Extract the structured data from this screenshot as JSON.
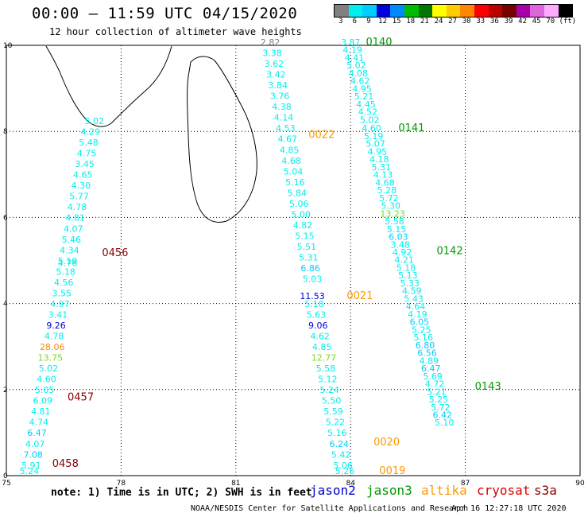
{
  "header": {
    "title": "00:00 — 11:59 UTC 04/15/2020",
    "subtitle": "12 hour collection of altimeter wave heights"
  },
  "colorbar": {
    "colors": [
      "#808080",
      "#00eeee",
      "#00ccff",
      "#0000dd",
      "#0088ff",
      "#00bb00",
      "#007700",
      "#ffff00",
      "#ffcc00",
      "#ff8800",
      "#ff0000",
      "#bb0000",
      "#770000",
      "#aa00aa",
      "#dd66dd",
      "#ffaaff",
      "#000000"
    ],
    "labels": [
      "3",
      "6",
      "9",
      "12",
      "15",
      "18",
      "21",
      "24",
      "27",
      "30",
      "33",
      "36",
      "39",
      "42",
      "45",
      "70",
      "(ft)"
    ]
  },
  "axes": {
    "x_ticks": [
      "75",
      "78",
      "81",
      "84",
      "87",
      "90"
    ],
    "y_ticks": [
      "0",
      "2",
      "4",
      "6",
      "8",
      "10"
    ]
  },
  "legend": {
    "note": "note: 1) Time is in UTC; 2) SWH is in feet",
    "items": [
      {
        "name": "jason2",
        "color": "#0000cc"
      },
      {
        "name": "jason3",
        "color": "#009900"
      },
      {
        "name": "altika",
        "color": "#ff9900"
      },
      {
        "name": "cryosat",
        "color": "#dd0000"
      },
      {
        "name": "s3a",
        "color": "#880000"
      }
    ]
  },
  "footer": {
    "credit": "NOAA/NESDIS Center for Satellite Applications and Research",
    "timestamp": "Apr 16 12:27:18 UTC 2020"
  },
  "chart_data": {
    "type": "scatter",
    "title": "00:00 — 11:59 UTC 04/15/2020",
    "xlim": [
      75,
      90
    ],
    "ylim": [
      0,
      10
    ],
    "grid": true,
    "tracks": [
      {
        "label": "0456",
        "color": "#880000",
        "lx": 77.5,
        "ly": 5.1
      },
      {
        "label": "0457",
        "color": "#880000",
        "lx": 76.6,
        "ly": 1.75
      },
      {
        "label": "0458",
        "color": "#880000",
        "lx": 76.2,
        "ly": 0.2
      },
      {
        "label": "0022",
        "color": "#ff9900",
        "lx": 82.9,
        "ly": 7.85
      },
      {
        "label": "0021",
        "color": "#ff9900",
        "lx": 83.9,
        "ly": 4.1
      },
      {
        "label": "0020",
        "color": "#ff9900",
        "lx": 84.6,
        "ly": 0.7
      },
      {
        "label": "0019",
        "color": "#ff9900",
        "lx": 84.75,
        "ly": 0.0
      },
      {
        "label": "0140",
        "color": "#009900",
        "lx": 84.4,
        "ly": 10.0
      },
      {
        "label": "0141",
        "color": "#009900",
        "lx": 85.25,
        "ly": 8.0
      },
      {
        "label": "0142",
        "color": "#009900",
        "lx": 86.25,
        "ly": 5.15
      },
      {
        "label": "0143",
        "color": "#009900",
        "lx": 87.25,
        "ly": 2.0
      }
    ],
    "points": [
      {
        "x": 77.3,
        "y": 8.17,
        "v": "5.02",
        "c": "#00eeee"
      },
      {
        "x": 77.2,
        "y": 7.92,
        "v": "4.29",
        "c": "#00eeee"
      },
      {
        "x": 77.15,
        "y": 7.67,
        "v": "5.48",
        "c": "#00eeee"
      },
      {
        "x": 77.1,
        "y": 7.42,
        "v": "4.75",
        "c": "#00eeee"
      },
      {
        "x": 77.05,
        "y": 7.17,
        "v": "3.45",
        "c": "#00eeee"
      },
      {
        "x": 77.0,
        "y": 6.92,
        "v": "4.65",
        "c": "#00eeee"
      },
      {
        "x": 76.95,
        "y": 6.67,
        "v": "4.30",
        "c": "#00eeee"
      },
      {
        "x": 76.9,
        "y": 6.42,
        "v": "5.77",
        "c": "#00eeee"
      },
      {
        "x": 76.85,
        "y": 6.17,
        "v": "4.78",
        "c": "#00eeee"
      },
      {
        "x": 76.8,
        "y": 5.92,
        "v": "4.81",
        "c": "#00eeee"
      },
      {
        "x": 76.75,
        "y": 5.67,
        "v": "4.07",
        "c": "#00eeee"
      },
      {
        "x": 76.7,
        "y": 5.42,
        "v": "5.46",
        "c": "#00eeee"
      },
      {
        "x": 76.65,
        "y": 5.17,
        "v": "4.34",
        "c": "#00eeee"
      },
      {
        "x": 76.6,
        "y": 4.92,
        "v": "5.19",
        "c": "#00eeee"
      },
      {
        "x": 76.6,
        "y": 4.87,
        "v": "4.76",
        "c": "#00eeee"
      },
      {
        "x": 76.55,
        "y": 4.67,
        "v": "5.18",
        "c": "#00eeee"
      },
      {
        "x": 76.5,
        "y": 4.42,
        "v": "4.56",
        "c": "#00eeee"
      },
      {
        "x": 76.45,
        "y": 4.17,
        "v": "3.55",
        "c": "#00eeee"
      },
      {
        "x": 76.4,
        "y": 3.92,
        "v": "4.97",
        "c": "#00eeee"
      },
      {
        "x": 76.35,
        "y": 3.67,
        "v": "3.41",
        "c": "#00eeee"
      },
      {
        "x": 76.3,
        "y": 3.42,
        "v": "9.26",
        "c": "#0000dd"
      },
      {
        "x": 76.25,
        "y": 3.17,
        "v": "4.78",
        "c": "#00eeee"
      },
      {
        "x": 76.2,
        "y": 2.92,
        "v": "28.06",
        "c": "#ff8800"
      },
      {
        "x": 76.15,
        "y": 2.67,
        "v": "13.75",
        "c": "#77dd22"
      },
      {
        "x": 76.1,
        "y": 2.42,
        "v": "5.02",
        "c": "#00eeee"
      },
      {
        "x": 76.05,
        "y": 2.17,
        "v": "4.60",
        "c": "#00eeee"
      },
      {
        "x": 76.0,
        "y": 1.92,
        "v": "5.05",
        "c": "#00eeee"
      },
      {
        "x": 75.95,
        "y": 1.67,
        "v": "6.09",
        "c": "#00eeee"
      },
      {
        "x": 75.9,
        "y": 1.42,
        "v": "4.81",
        "c": "#00eeee"
      },
      {
        "x": 75.85,
        "y": 1.17,
        "v": "4.74",
        "c": "#00eeee"
      },
      {
        "x": 75.8,
        "y": 0.92,
        "v": "6.47",
        "c": "#00ccff"
      },
      {
        "x": 75.75,
        "y": 0.67,
        "v": "4.07",
        "c": "#00eeee"
      },
      {
        "x": 75.7,
        "y": 0.42,
        "v": "7.08",
        "c": "#00ccff"
      },
      {
        "x": 75.65,
        "y": 0.17,
        "v": "5.91",
        "c": "#00eeee"
      },
      {
        "x": 75.6,
        "y": -0.08,
        "v": "5.24",
        "c": "#00eeee"
      },
      {
        "x": 81.9,
        "y": 10.0,
        "v": "2.82",
        "c": "#808080"
      },
      {
        "x": 81.95,
        "y": 9.75,
        "v": "3.38",
        "c": "#00eeee"
      },
      {
        "x": 82.0,
        "y": 9.5,
        "v": "3.62",
        "c": "#00eeee"
      },
      {
        "x": 82.05,
        "y": 9.25,
        "v": "3.42",
        "c": "#00eeee"
      },
      {
        "x": 82.1,
        "y": 9.0,
        "v": "3.84",
        "c": "#00eeee"
      },
      {
        "x": 82.15,
        "y": 8.75,
        "v": "3.76",
        "c": "#00eeee"
      },
      {
        "x": 82.2,
        "y": 8.5,
        "v": "4.38",
        "c": "#00eeee"
      },
      {
        "x": 82.25,
        "y": 8.25,
        "v": "4.14",
        "c": "#00eeee"
      },
      {
        "x": 82.3,
        "y": 8.0,
        "v": "4.53",
        "c": "#00eeee"
      },
      {
        "x": 82.35,
        "y": 7.75,
        "v": "4.67",
        "c": "#00eeee"
      },
      {
        "x": 82.4,
        "y": 7.5,
        "v": "4.85",
        "c": "#00eeee"
      },
      {
        "x": 82.45,
        "y": 7.25,
        "v": "4.68",
        "c": "#00eeee"
      },
      {
        "x": 82.5,
        "y": 7.0,
        "v": "5.04",
        "c": "#00eeee"
      },
      {
        "x": 82.55,
        "y": 6.75,
        "v": "5.16",
        "c": "#00eeee"
      },
      {
        "x": 82.6,
        "y": 6.5,
        "v": "5.84",
        "c": "#00eeee"
      },
      {
        "x": 82.65,
        "y": 6.25,
        "v": "5.06",
        "c": "#00eeee"
      },
      {
        "x": 82.7,
        "y": 6.0,
        "v": "5.00",
        "c": "#00eeee"
      },
      {
        "x": 82.75,
        "y": 5.75,
        "v": "4.82",
        "c": "#00eeee"
      },
      {
        "x": 82.8,
        "y": 5.5,
        "v": "5.15",
        "c": "#00eeee"
      },
      {
        "x": 82.85,
        "y": 5.25,
        "v": "5.51",
        "c": "#00eeee"
      },
      {
        "x": 82.9,
        "y": 5.0,
        "v": "5.31",
        "c": "#00eeee"
      },
      {
        "x": 82.95,
        "y": 4.75,
        "v": "6.86",
        "c": "#00ccff"
      },
      {
        "x": 83.0,
        "y": 4.5,
        "v": "5.03",
        "c": "#00eeee"
      },
      {
        "x": 83.0,
        "y": 4.1,
        "v": "11.53",
        "c": "#0000dd"
      },
      {
        "x": 83.05,
        "y": 3.92,
        "v": "5.18",
        "c": "#00eeee"
      },
      {
        "x": 83.1,
        "y": 3.67,
        "v": "5.63",
        "c": "#00eeee"
      },
      {
        "x": 83.15,
        "y": 3.42,
        "v": "9.06",
        "c": "#0000dd"
      },
      {
        "x": 83.2,
        "y": 3.17,
        "v": "4.62",
        "c": "#00eeee"
      },
      {
        "x": 83.25,
        "y": 2.92,
        "v": "4.85",
        "c": "#00eeee"
      },
      {
        "x": 83.3,
        "y": 2.67,
        "v": "12.77",
        "c": "#77dd22"
      },
      {
        "x": 83.35,
        "y": 2.42,
        "v": "5.58",
        "c": "#00eeee"
      },
      {
        "x": 83.4,
        "y": 2.17,
        "v": "5.12",
        "c": "#00eeee"
      },
      {
        "x": 83.45,
        "y": 1.92,
        "v": "5.24",
        "c": "#00eeee"
      },
      {
        "x": 83.5,
        "y": 1.67,
        "v": "5.50",
        "c": "#00eeee"
      },
      {
        "x": 83.55,
        "y": 1.42,
        "v": "5.59",
        "c": "#00eeee"
      },
      {
        "x": 83.6,
        "y": 1.17,
        "v": "5.22",
        "c": "#00eeee"
      },
      {
        "x": 83.65,
        "y": 0.92,
        "v": "5.16",
        "c": "#00eeee"
      },
      {
        "x": 83.7,
        "y": 0.67,
        "v": "6.24",
        "c": "#00ccff"
      },
      {
        "x": 83.75,
        "y": 0.42,
        "v": "5.42",
        "c": "#00eeee"
      },
      {
        "x": 83.8,
        "y": 0.17,
        "v": "5.06",
        "c": "#00eeee"
      },
      {
        "x": 83.85,
        "y": -0.08,
        "v": "5.26",
        "c": "#00eeee"
      },
      {
        "x": 84.0,
        "y": 10.0,
        "v": "3.87",
        "c": "#00eeee"
      },
      {
        "x": 84.05,
        "y": 9.82,
        "v": "4.19",
        "c": "#00eeee"
      },
      {
        "x": 84.1,
        "y": 9.64,
        "v": "4.41",
        "c": "#00eeee"
      },
      {
        "x": 84.15,
        "y": 9.46,
        "v": "5.02",
        "c": "#00eeee"
      },
      {
        "x": 84.2,
        "y": 9.28,
        "v": "4.08",
        "c": "#00eeee"
      },
      {
        "x": 84.25,
        "y": 9.1,
        "v": "4.62",
        "c": "#00eeee"
      },
      {
        "x": 84.3,
        "y": 8.92,
        "v": "4.95",
        "c": "#00eeee"
      },
      {
        "x": 84.35,
        "y": 8.74,
        "v": "5.21",
        "c": "#00eeee"
      },
      {
        "x": 84.4,
        "y": 8.56,
        "v": "4.45",
        "c": "#00eeee"
      },
      {
        "x": 84.45,
        "y": 8.38,
        "v": "4.52",
        "c": "#00eeee"
      },
      {
        "x": 84.5,
        "y": 8.2,
        "v": "5.02",
        "c": "#00eeee"
      },
      {
        "x": 84.55,
        "y": 8.0,
        "v": "4.60",
        "c": "#00eeee"
      },
      {
        "x": 84.6,
        "y": 7.82,
        "v": "5.19",
        "c": "#00eeee"
      },
      {
        "x": 84.65,
        "y": 7.64,
        "v": "5.07",
        "c": "#00eeee"
      },
      {
        "x": 84.7,
        "y": 7.46,
        "v": "4.95",
        "c": "#00eeee"
      },
      {
        "x": 84.75,
        "y": 7.28,
        "v": "4.18",
        "c": "#00eeee"
      },
      {
        "x": 84.8,
        "y": 7.1,
        "v": "5.31",
        "c": "#00eeee"
      },
      {
        "x": 84.85,
        "y": 6.92,
        "v": "4.13",
        "c": "#00eeee"
      },
      {
        "x": 84.9,
        "y": 6.74,
        "v": "4.68",
        "c": "#00eeee"
      },
      {
        "x": 84.95,
        "y": 6.56,
        "v": "5.28",
        "c": "#00eeee"
      },
      {
        "x": 85.0,
        "y": 6.38,
        "v": "5.72",
        "c": "#00eeee"
      },
      {
        "x": 85.05,
        "y": 6.2,
        "v": "5.30",
        "c": "#00eeee"
      },
      {
        "x": 85.1,
        "y": 6.02,
        "v": "13.23",
        "c": "#77dd22"
      },
      {
        "x": 85.15,
        "y": 5.84,
        "v": "5.58",
        "c": "#00eeee"
      },
      {
        "x": 85.2,
        "y": 5.66,
        "v": "5.15",
        "c": "#00eeee"
      },
      {
        "x": 85.25,
        "y": 5.48,
        "v": "6.03",
        "c": "#00ccff"
      },
      {
        "x": 85.3,
        "y": 5.3,
        "v": "3.48",
        "c": "#00eeee"
      },
      {
        "x": 85.35,
        "y": 5.12,
        "v": "4.92",
        "c": "#00eeee"
      },
      {
        "x": 85.4,
        "y": 4.94,
        "v": "4.21",
        "c": "#00eeee"
      },
      {
        "x": 85.45,
        "y": 4.76,
        "v": "5.18",
        "c": "#00eeee"
      },
      {
        "x": 85.5,
        "y": 4.58,
        "v": "5.13",
        "c": "#00eeee"
      },
      {
        "x": 85.55,
        "y": 4.4,
        "v": "5.33",
        "c": "#00eeee"
      },
      {
        "x": 85.6,
        "y": 4.22,
        "v": "4.59",
        "c": "#00eeee"
      },
      {
        "x": 85.65,
        "y": 4.04,
        "v": "5.43",
        "c": "#00eeee"
      },
      {
        "x": 85.7,
        "y": 3.86,
        "v": "4.64",
        "c": "#00eeee"
      },
      {
        "x": 85.75,
        "y": 3.68,
        "v": "4.19",
        "c": "#00eeee"
      },
      {
        "x": 85.8,
        "y": 3.5,
        "v": "6.05",
        "c": "#00ccff"
      },
      {
        "x": 85.85,
        "y": 3.32,
        "v": "5.25",
        "c": "#00eeee"
      },
      {
        "x": 85.9,
        "y": 3.14,
        "v": "5.16",
        "c": "#00eeee"
      },
      {
        "x": 85.95,
        "y": 2.96,
        "v": "6.80",
        "c": "#00ccff"
      },
      {
        "x": 86.0,
        "y": 2.78,
        "v": "6.56",
        "c": "#00ccff"
      },
      {
        "x": 86.05,
        "y": 2.6,
        "v": "4.89",
        "c": "#00eeee"
      },
      {
        "x": 86.1,
        "y": 2.42,
        "v": "6.47",
        "c": "#00ccff"
      },
      {
        "x": 86.15,
        "y": 2.24,
        "v": "5.69",
        "c": "#00eeee"
      },
      {
        "x": 86.2,
        "y": 2.06,
        "v": "4.72",
        "c": "#00eeee"
      },
      {
        "x": 86.25,
        "y": 1.88,
        "v": "5.21",
        "c": "#00eeee"
      },
      {
        "x": 86.3,
        "y": 1.7,
        "v": "5.25",
        "c": "#00eeee"
      },
      {
        "x": 86.35,
        "y": 1.52,
        "v": "5.72",
        "c": "#00eeee"
      },
      {
        "x": 86.4,
        "y": 1.34,
        "v": "6.42",
        "c": "#00ccff"
      },
      {
        "x": 86.45,
        "y": 1.16,
        "v": "5.10",
        "c": "#00eeee"
      }
    ]
  }
}
